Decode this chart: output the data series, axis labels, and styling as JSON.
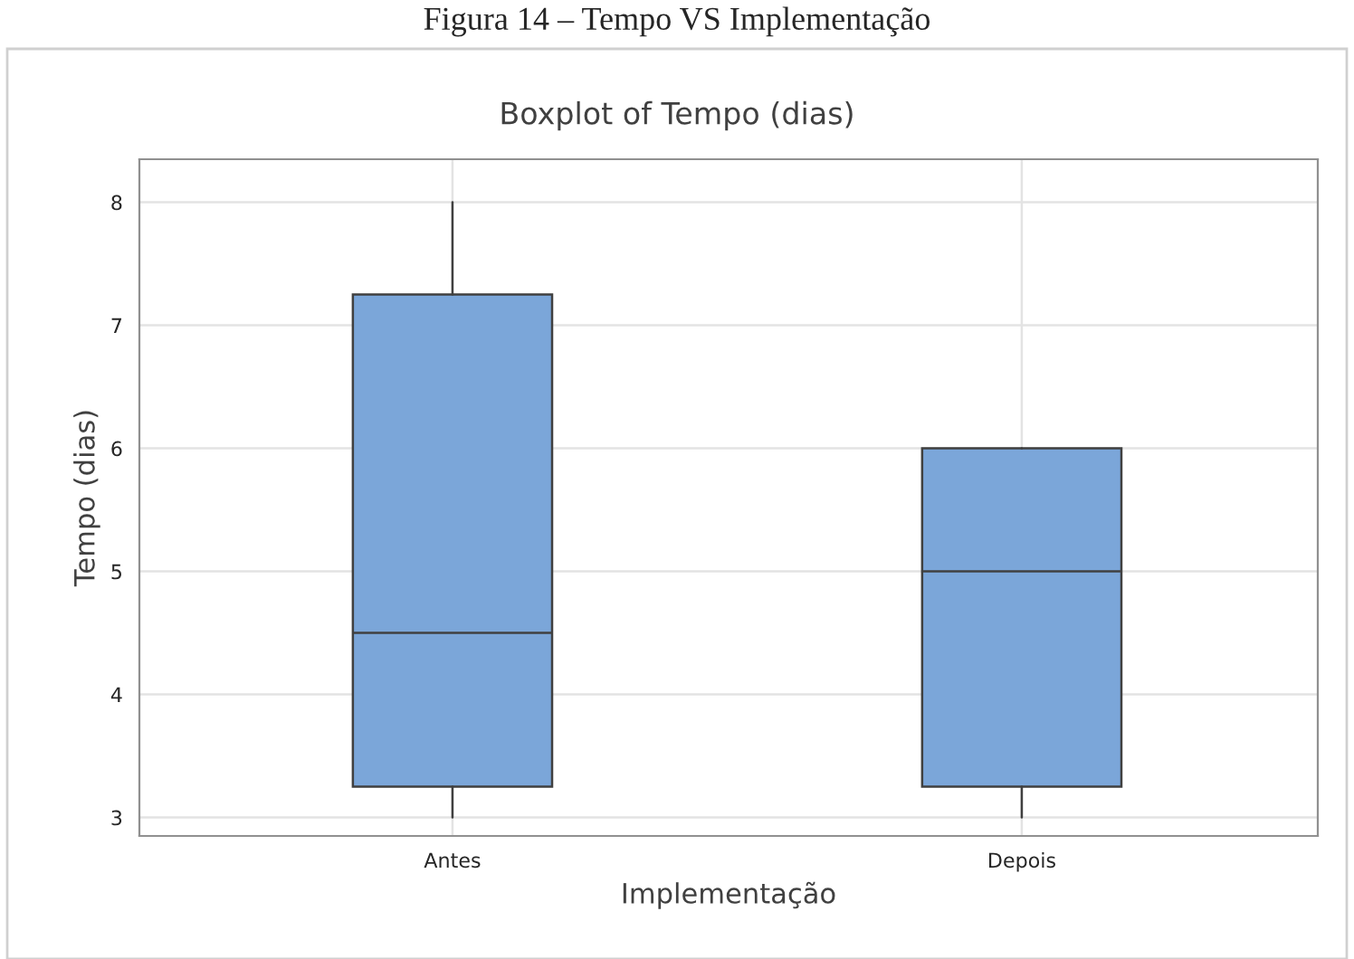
{
  "chart_data": {
    "type": "box",
    "title": "Figura 14 – Tempo VS Implementação",
    "subtitle": "Boxplot of Tempo (dias)",
    "xlabel": "Implementação",
    "ylabel": "Tempo (dias)",
    "categories": [
      "Antes",
      "Depois"
    ],
    "boxes": [
      {
        "low": 3,
        "q1": 3.25,
        "median": 4.5,
        "q3": 7.25,
        "high": 8
      },
      {
        "low": 3,
        "q1": 3.25,
        "median": 5,
        "q3": 6,
        "high": 6
      }
    ],
    "color": "#7ba6d9",
    "ylim": [
      2.85,
      8.35
    ],
    "yticks": [
      3,
      4,
      5,
      6,
      7,
      8
    ],
    "grid": true,
    "legend": false
  }
}
